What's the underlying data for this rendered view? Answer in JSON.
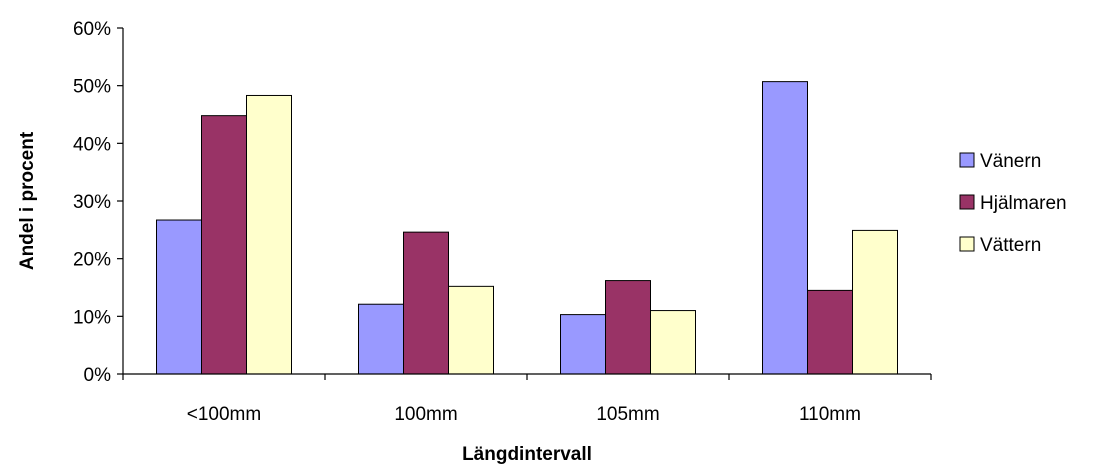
{
  "chart_data": {
    "type": "bar",
    "title": "",
    "xlabel": "Längdintervall",
    "ylabel": "Andel i procent",
    "categories": [
      "<100mm",
      "100mm",
      "105mm",
      "110mm"
    ],
    "series": [
      {
        "name": "Vänern",
        "color": "#9999ff",
        "values": [
          26.7,
          12.1,
          10.3,
          50.7
        ]
      },
      {
        "name": "Hjälmaren",
        "color": "#993366",
        "values": [
          44.8,
          24.6,
          16.2,
          14.5
        ]
      },
      {
        "name": "Vättern",
        "color": "#ffffcc",
        "values": [
          48.3,
          15.2,
          11.0,
          24.9
        ]
      }
    ],
    "ylim": [
      0,
      60
    ],
    "yticks": [
      0,
      10,
      20,
      30,
      40,
      50,
      60
    ],
    "ytick_labels": [
      "0%",
      "10%",
      "20%",
      "30%",
      "40%",
      "50%",
      "60%"
    ],
    "grid": false,
    "legend_position": "right"
  }
}
